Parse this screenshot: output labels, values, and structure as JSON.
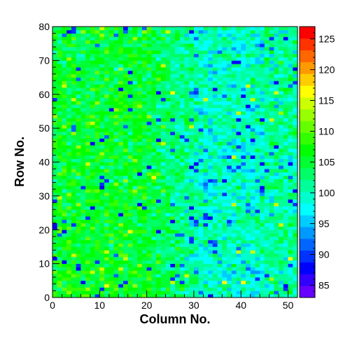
{
  "chart_data": {
    "type": "heatmap",
    "title": "",
    "xlabel": "Column No.",
    "ylabel": "Row No.",
    "xlim": [
      0,
      52
    ],
    "ylim": [
      0,
      80
    ],
    "x_ticks": [
      0,
      10,
      20,
      30,
      40,
      50
    ],
    "y_ticks": [
      0,
      10,
      20,
      30,
      40,
      50,
      60,
      70,
      80
    ],
    "n_columns": 52,
    "n_rows": 80,
    "color_scale": {
      "min": 83,
      "max": 127,
      "ticks": [
        85,
        90,
        95,
        100,
        105,
        110,
        115,
        120,
        125
      ],
      "palette": [
        "#6600ff",
        "#3300ff",
        "#0000ff",
        "#0033ff",
        "#0066ff",
        "#0099ff",
        "#00ccff",
        "#00ffff",
        "#00ffcc",
        "#00ff99",
        "#00ff66",
        "#00ff33",
        "#00ff00",
        "#33ff00",
        "#66ff00",
        "#99ff00",
        "#ccff00",
        "#ffff00",
        "#ffcc00",
        "#ff9900",
        "#ff6600",
        "#ff3300",
        "#ff0000"
      ]
    },
    "values_description": "Per-pixel counts, mostly 95-110; left columns (0-25) greener (~103-106), right columns (28-50) bluer (~97-100) with scattered low (~88-92) cells; sparse yellow highs (~113-117)."
  }
}
